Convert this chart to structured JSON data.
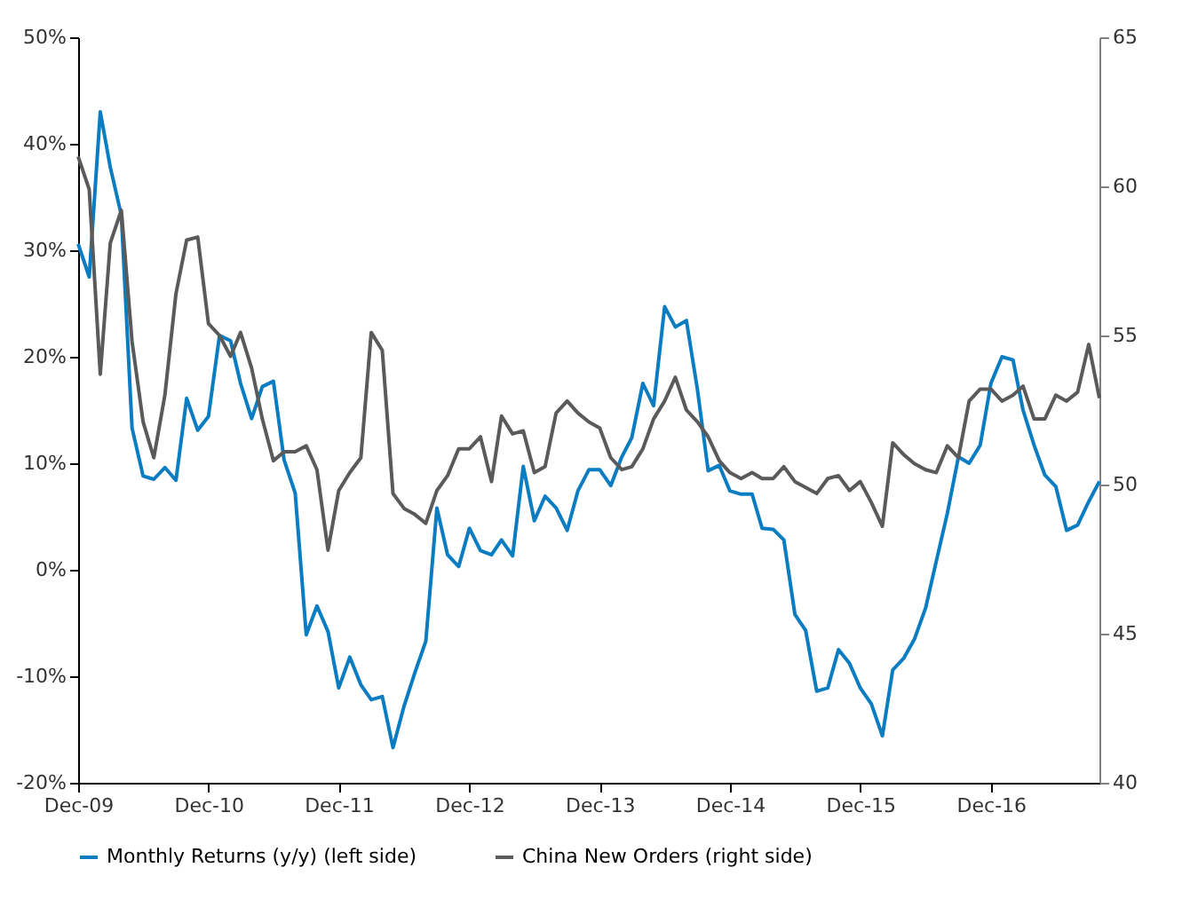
{
  "chart_data": {
    "type": "line",
    "x": [
      "2009-12",
      "2010-01",
      "2010-02",
      "2010-03",
      "2010-04",
      "2010-05",
      "2010-06",
      "2010-07",
      "2010-08",
      "2010-09",
      "2010-10",
      "2010-11",
      "2010-12",
      "2011-01",
      "2011-02",
      "2011-03",
      "2011-04",
      "2011-05",
      "2011-06",
      "2011-07",
      "2011-08",
      "2011-09",
      "2011-10",
      "2011-11",
      "2011-12",
      "2012-01",
      "2012-02",
      "2012-03",
      "2012-04",
      "2012-05",
      "2012-06",
      "2012-07",
      "2012-08",
      "2012-09",
      "2012-10",
      "2012-11",
      "2012-12",
      "2013-01",
      "2013-02",
      "2013-03",
      "2013-04",
      "2013-05",
      "2013-06",
      "2013-07",
      "2013-08",
      "2013-09",
      "2013-10",
      "2013-11",
      "2013-12",
      "2014-01",
      "2014-02",
      "2014-03",
      "2014-04",
      "2014-05",
      "2014-06",
      "2014-07",
      "2014-08",
      "2014-09",
      "2014-10",
      "2014-11",
      "2014-12",
      "2015-01",
      "2015-02",
      "2015-03",
      "2015-04",
      "2015-05",
      "2015-06",
      "2015-07",
      "2015-08",
      "2015-09",
      "2015-10",
      "2015-11",
      "2015-12",
      "2016-01",
      "2016-02",
      "2016-03",
      "2016-04",
      "2016-05",
      "2016-06",
      "2016-07",
      "2016-08",
      "2016-09",
      "2016-10",
      "2016-11",
      "2016-12",
      "2017-01",
      "2017-02",
      "2017-03",
      "2017-04",
      "2017-05",
      "2017-06",
      "2017-07",
      "2017-08",
      "2017-09",
      "2017-10"
    ],
    "series": [
      {
        "name": "Monthly Returns (y/y) (left side)",
        "color": "#0a7cc1",
        "values": [
          30.6,
          27.5,
          43,
          37.8,
          33.3,
          13.3,
          8.8,
          8.5,
          9.6,
          8.4,
          16.1,
          13.1,
          14.4,
          22,
          21.5,
          17.5,
          14.2,
          17.2,
          17.7,
          10.3,
          7.2,
          -6.1,
          -3.4,
          -5.8,
          -11.1,
          -8.2,
          -10.8,
          -12.2,
          -11.9,
          -16.7,
          -12.8,
          -9.7,
          -6.7,
          5.8,
          1.4,
          0.3,
          3.9,
          1.8,
          1.4,
          2.8,
          1.3,
          9.7,
          4.6,
          6.9,
          5.8,
          3.7,
          7.4,
          9.4,
          9.4,
          7.9,
          10.6,
          12.4,
          17.5,
          15.4,
          24.7,
          22.8,
          23.4,
          16.9,
          9.3,
          9.8,
          7.4,
          7.1,
          7.1,
          3.9,
          3.8,
          2.8,
          -4.2,
          -5.7,
          -11.4,
          -11.1,
          -7.5,
          -8.8,
          -11.1,
          -12.6,
          -15.6,
          -9.4,
          -8.3,
          -6.5,
          -3.6,
          0.8,
          5.3,
          10.6,
          10,
          11.7,
          17.5,
          20,
          19.7,
          15,
          11.7,
          8.9,
          7.8,
          3.7,
          4.2,
          6.4,
          8.3
        ]
      },
      {
        "name": "China New Orders (right side)",
        "color": "#5a5a5a",
        "axis": "y2",
        "values": [
          61.0,
          59.9,
          53.7,
          58.1,
          59.2,
          54.8,
          52.1,
          50.9,
          53.0,
          56.4,
          58.2,
          58.3,
          55.4,
          55.0,
          54.3,
          55.1,
          53.9,
          52.2,
          50.8,
          51.1,
          51.1,
          51.3,
          50.5,
          47.8,
          49.8,
          50.4,
          50.9,
          55.1,
          54.5,
          49.7,
          49.2,
          49.0,
          48.7,
          49.8,
          50.3,
          51.2,
          51.2,
          51.6,
          50.1,
          52.3,
          51.7,
          51.8,
          50.4,
          50.6,
          52.4,
          52.8,
          52.4,
          52.1,
          51.9,
          50.9,
          50.5,
          50.6,
          51.2,
          52.2,
          52.8,
          53.6,
          52.5,
          52.1,
          51.6,
          50.8,
          50.4,
          50.2,
          50.4,
          50.2,
          50.2,
          50.6,
          50.1,
          49.9,
          49.7,
          50.2,
          50.3,
          49.8,
          50.1,
          49.4,
          48.6,
          51.4,
          51.0,
          50.7,
          50.5,
          50.4,
          51.3,
          50.9,
          52.8,
          53.2,
          53.2,
          52.8,
          53.0,
          53.3,
          52.2,
          52.2,
          53.0,
          52.8,
          53.1,
          54.7,
          52.9
        ]
      }
    ],
    "xlim": [
      "2009-12",
      "2017-10"
    ],
    "xticks": [
      {
        "value": "2009-12",
        "label": "Dec-09"
      },
      {
        "value": "2010-12",
        "label": "Dec-10"
      },
      {
        "value": "2011-12",
        "label": "Dec-11"
      },
      {
        "value": "2012-12",
        "label": "Dec-12"
      },
      {
        "value": "2013-12",
        "label": "Dec-13"
      },
      {
        "value": "2014-12",
        "label": "Dec-14"
      },
      {
        "value": "2015-12",
        "label": "Dec-15"
      },
      {
        "value": "2016-12",
        "label": "Dec-16"
      }
    ],
    "ylim": [
      -20,
      50
    ],
    "yticks": [
      {
        "value": -20,
        "label": "-20%"
      },
      {
        "value": -10,
        "label": "-10%"
      },
      {
        "value": 0,
        "label": "0%"
      },
      {
        "value": 10,
        "label": "10%"
      },
      {
        "value": 20,
        "label": "20%"
      },
      {
        "value": 30,
        "label": "30%"
      },
      {
        "value": 40,
        "label": "40%"
      },
      {
        "value": 50,
        "label": "50%"
      }
    ],
    "y2lim": [
      40,
      65
    ],
    "y2ticks": [
      40,
      45,
      50,
      55,
      60,
      65
    ],
    "grid": false,
    "legend": "bottom",
    "marker": "none",
    "line_style": "solid"
  }
}
